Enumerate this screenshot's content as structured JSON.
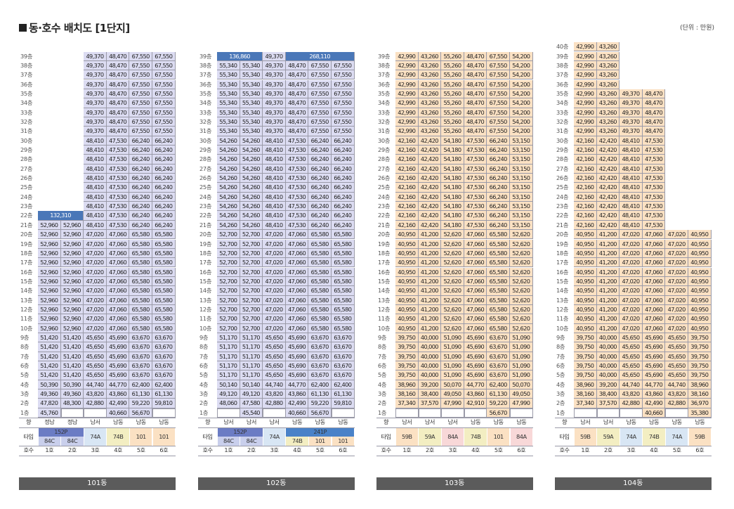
{
  "page": {
    "title": "동·호수 배치도 [1단지]",
    "unit": "(단위 : 만원)"
  },
  "labels": {
    "direction": "향",
    "type": "타입",
    "ho": "호수"
  },
  "colors": {
    "b1": "#dcdcf2",
    "b2": "#dcdcf2",
    "b3": "#fbe1c3",
    "b4": "#fbe1c3",
    "wide": "#4a77b8",
    "types": {
      "152P": "#6b7cc4",
      "241P": "#4a82c8",
      "84C": "#c9cfec",
      "74A": "#d8e6f4",
      "74B": "#f3eec2",
      "101": "#fbe1c3",
      "59B": "#fbe1c3",
      "59A": "#f3eec2",
      "84A": "#f8d8d8"
    }
  },
  "buildings": [
    {
      "name": "101동",
      "top_floor": 39,
      "cols": 6,
      "groups": [
        {
          "f": [
            39,
            31
          ],
          "v": [
            null,
            null,
            "49,370",
            "48,470",
            "67,550",
            "67,550"
          ]
        },
        {
          "f": [
            30,
            23
          ],
          "v": [
            null,
            null,
            "48,410",
            "47,530",
            "66,240",
            "66,240"
          ]
        },
        {
          "f": [
            22,
            22
          ],
          "v": [
            {
              "span": 2,
              "text": "132,310"
            },
            "48,410",
            "47,530",
            "66,240",
            "66,240"
          ]
        },
        {
          "f": [
            21,
            21
          ],
          "v": [
            "52,960",
            "52,960",
            "48,410",
            "47,530",
            "66,240",
            "66,240"
          ]
        },
        {
          "f": [
            20,
            10
          ],
          "v": [
            "52,960",
            "52,960",
            "47,020",
            "47,060",
            "65,580",
            "65,580"
          ]
        },
        {
          "f": [
            9,
            5
          ],
          "v": [
            "51,420",
            "51,420",
            "45,650",
            "45,690",
            "63,670",
            "63,670"
          ]
        },
        {
          "f": [
            4,
            4
          ],
          "v": [
            "50,390",
            "50,390",
            "44,740",
            "44,770",
            "62,400",
            "62,400"
          ]
        },
        {
          "f": [
            3,
            3
          ],
          "v": [
            "49,360",
            "49,360",
            "43,820",
            "43,860",
            "61,130",
            "61,130"
          ]
        },
        {
          "f": [
            2,
            2
          ],
          "v": [
            "47,820",
            "48,300",
            "42,880",
            "42,490",
            "59,220",
            "59,810"
          ]
        },
        {
          "f": [
            1,
            1
          ],
          "v": [
            "45,760",
            "x",
            "x",
            "40,660",
            "56,670",
            "x"
          ]
        }
      ],
      "dir": [
        "정남",
        "정남",
        "남서",
        "남동",
        "남동",
        "남동"
      ],
      "types_top": [
        {
          "span": 2,
          "text": "152P",
          "c": "152P"
        },
        {
          "span": 1,
          "text": "74A",
          "c": "74A",
          "tall": true
        },
        {
          "span": 1,
          "text": "74B",
          "c": "74B",
          "tall": true
        },
        {
          "span": 1,
          "text": "101",
          "c": "101",
          "tall": true
        },
        {
          "span": 1,
          "text": "101",
          "c": "101",
          "tall": true
        }
      ],
      "types_bot": [
        {
          "text": "84C",
          "c": "84C"
        },
        {
          "text": "84C",
          "c": "84C"
        }
      ],
      "ho": [
        "1호",
        "2호",
        "3호",
        "4호",
        "5호",
        "6호"
      ]
    },
    {
      "name": "102동",
      "top_floor": 39,
      "cols": 6,
      "groups": [
        {
          "f": [
            39,
            39
          ],
          "v": [
            {
              "span": 2,
              "text": "136,860"
            },
            "49,370",
            {
              "span": 3,
              "text": "268,110"
            }
          ]
        },
        {
          "f": [
            38,
            31
          ],
          "v": [
            "55,340",
            "55,340",
            "49,370",
            "48,470",
            "67,550",
            "67,550"
          ]
        },
        {
          "f": [
            30,
            21
          ],
          "v": [
            "54,260",
            "54,260",
            "48,410",
            "47,530",
            "66,240",
            "66,240"
          ]
        },
        {
          "f": [
            20,
            10
          ],
          "v": [
            "52,700",
            "52,700",
            "47,020",
            "47,060",
            "65,580",
            "65,580"
          ]
        },
        {
          "f": [
            9,
            5
          ],
          "v": [
            "51,170",
            "51,170",
            "45,650",
            "45,690",
            "63,670",
            "63,670"
          ]
        },
        {
          "f": [
            4,
            4
          ],
          "v": [
            "50,140",
            "50,140",
            "44,740",
            "44,770",
            "62,400",
            "62,400"
          ]
        },
        {
          "f": [
            3,
            3
          ],
          "v": [
            "49,120",
            "49,120",
            "43,820",
            "43,860",
            "61,130",
            "61,130"
          ]
        },
        {
          "f": [
            2,
            2
          ],
          "v": [
            "48,060",
            "47,580",
            "42,880",
            "42,490",
            "59,220",
            "59,810"
          ]
        },
        {
          "f": [
            1,
            1
          ],
          "v": [
            "x",
            "45,540",
            "x",
            "40,660",
            "56,670",
            "x"
          ]
        }
      ],
      "dir": [
        "남서",
        "남서",
        "남서",
        "남동",
        "남동",
        "남동"
      ],
      "types_top": [
        {
          "span": 2,
          "text": "152P",
          "c": "152P"
        },
        {
          "span": 1,
          "text": "74A",
          "c": "74A",
          "tall": true
        },
        {
          "span": 3,
          "text": "241P",
          "c": "241P"
        }
      ],
      "types_bot": [
        {
          "text": "84C",
          "c": "84C"
        },
        {
          "text": "84C",
          "c": "84C"
        },
        null,
        {
          "text": "74B",
          "c": "74B"
        },
        {
          "text": "101",
          "c": "101"
        },
        {
          "text": "101",
          "c": "101"
        }
      ],
      "ho": [
        "1호",
        "2호",
        "3호",
        "4호",
        "5호",
        "6호"
      ]
    },
    {
      "name": "103동",
      "top_floor": 39,
      "cols": 6,
      "groups": [
        {
          "f": [
            39,
            31
          ],
          "v": [
            "42,990",
            "43,260",
            "55,260",
            "48,470",
            "67,550",
            "54,200"
          ]
        },
        {
          "f": [
            30,
            21
          ],
          "v": [
            "42,160",
            "42,420",
            "54,180",
            "47,530",
            "66,240",
            "53,150"
          ]
        },
        {
          "f": [
            20,
            10
          ],
          "v": [
            "40,950",
            "41,200",
            "52,620",
            "47,060",
            "65,580",
            "52,620"
          ]
        },
        {
          "f": [
            9,
            5
          ],
          "v": [
            "39,750",
            "40,000",
            "51,090",
            "45,690",
            "63,670",
            "51,090"
          ]
        },
        {
          "f": [
            4,
            4
          ],
          "v": [
            "38,960",
            "39,200",
            "50,070",
            "44,770",
            "62,400",
            "50,070"
          ]
        },
        {
          "f": [
            3,
            3
          ],
          "v": [
            "38,160",
            "38,400",
            "49,050",
            "43,860",
            "61,130",
            "49,050"
          ]
        },
        {
          "f": [
            2,
            2
          ],
          "v": [
            "37,340",
            "37,570",
            "47,990",
            "42,910",
            "59,220",
            "47,990"
          ]
        },
        {
          "f": [
            1,
            1
          ],
          "v": [
            "x",
            "x",
            "x",
            "x",
            "56,670",
            "x"
          ]
        }
      ],
      "dir": [
        "남서",
        "남서",
        "남서",
        "남동",
        "남동",
        "남동"
      ],
      "types_top": [
        {
          "span": 1,
          "text": "59B",
          "c": "59B",
          "tall": true
        },
        {
          "span": 1,
          "text": "59A",
          "c": "59A",
          "tall": true
        },
        {
          "span": 1,
          "text": "84A",
          "c": "84A",
          "tall": true
        },
        {
          "span": 1,
          "text": "74B",
          "c": "74B",
          "tall": true
        },
        {
          "span": 1,
          "text": "101",
          "c": "101",
          "tall": true
        },
        {
          "span": 1,
          "text": "84A",
          "c": "84A",
          "tall": true
        }
      ],
      "types_bot": [],
      "ho": [
        "1호",
        "2호",
        "3호",
        "4호",
        "5호",
        "6호"
      ]
    },
    {
      "name": "104동",
      "top_floor": 40,
      "cols": 6,
      "groups": [
        {
          "f": [
            40,
            36
          ],
          "v": [
            "42,990",
            "43,260",
            null,
            null,
            null,
            null
          ]
        },
        {
          "f": [
            35,
            31
          ],
          "v": [
            "42,990",
            "43,260",
            "49,370",
            "48,470",
            null,
            null
          ]
        },
        {
          "f": [
            30,
            21
          ],
          "v": [
            "42,160",
            "42,420",
            "48,410",
            "47,530",
            null,
            null
          ]
        },
        {
          "f": [
            20,
            10
          ],
          "v": [
            "40,950",
            "41,200",
            "47,020",
            "47,060",
            "47,020",
            "40,950"
          ]
        },
        {
          "f": [
            9,
            5
          ],
          "v": [
            "39,750",
            "40,000",
            "45,650",
            "45,690",
            "45,650",
            "39,750"
          ]
        },
        {
          "f": [
            4,
            4
          ],
          "v": [
            "38,960",
            "39,200",
            "44,740",
            "44,770",
            "44,740",
            "38,960"
          ]
        },
        {
          "f": [
            3,
            3
          ],
          "v": [
            "38,160",
            "38,400",
            "43,820",
            "43,860",
            "43,820",
            "38,160"
          ]
        },
        {
          "f": [
            2,
            2
          ],
          "v": [
            "37,340",
            "37,570",
            "42,880",
            "42,490",
            "42,880",
            "36,970"
          ]
        },
        {
          "f": [
            1,
            1
          ],
          "v": [
            "x",
            "x",
            "x",
            "40,660",
            "x",
            "35,380"
          ]
        }
      ],
      "dir": [
        "남서",
        "남서",
        "남동",
        "남동",
        "남동",
        "남동"
      ],
      "types_top": [
        {
          "span": 1,
          "text": "59B",
          "c": "59B",
          "tall": true
        },
        {
          "span": 1,
          "text": "59A",
          "c": "59A",
          "tall": true
        },
        {
          "span": 1,
          "text": "74A",
          "c": "74A",
          "tall": true
        },
        {
          "span": 1,
          "text": "74B",
          "c": "74B",
          "tall": true
        },
        {
          "span": 1,
          "text": "74A",
          "c": "74A",
          "tall": true
        },
        {
          "span": 1,
          "text": "59B",
          "c": "59B",
          "tall": true
        }
      ],
      "types_bot": [],
      "ho": [
        "1호",
        "2호",
        "3호",
        "4호",
        "5호",
        "6호"
      ]
    }
  ]
}
